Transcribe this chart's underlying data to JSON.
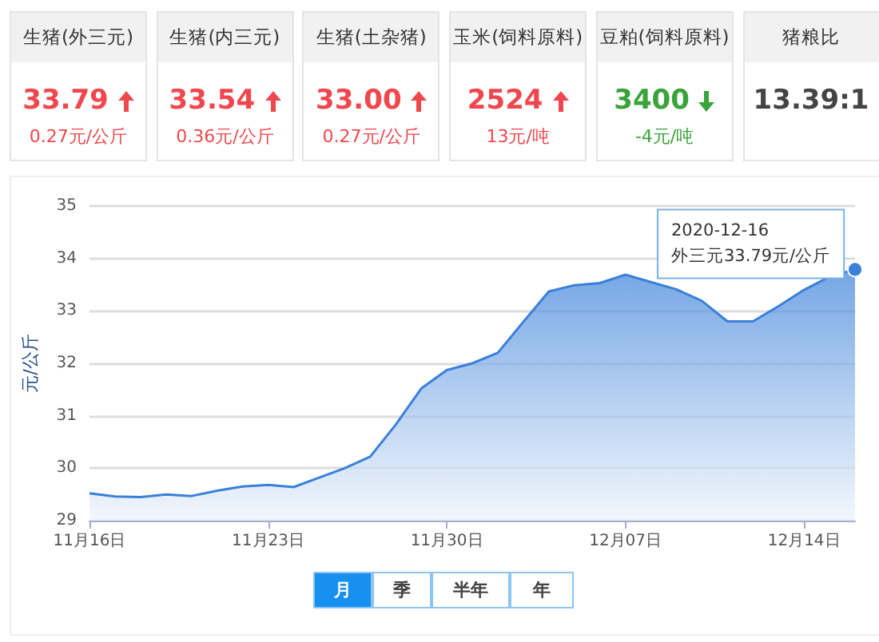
{
  "chart_data": [
    {
      "type": "other",
      "categories": [
        "生猪(外三元)",
        "生猪(内三元)",
        "生猪(土杂猪)",
        "玉米(饲料原料)",
        "豆粕(饲料原料)",
        "猪粮比"
      ],
      "value_labels": [
        "33.79",
        "33.54",
        "33.00",
        "2524",
        "3400",
        "13.39:1"
      ],
      "annotations": [
        "0.27元/公斤",
        "0.36元/公斤",
        "0.27元/公斤",
        "13元/吨",
        "-4元/吨"
      ]
    },
    {
      "type": "area",
      "ylabel": "元/公斤",
      "color": "#3a80d9",
      "grid": "y",
      "marker": "none",
      "x": [
        "2020-11-16",
        "2020-11-17",
        "2020-11-18",
        "2020-11-19",
        "2020-11-20",
        "2020-11-21",
        "2020-11-22",
        "2020-11-23",
        "2020-11-24",
        "2020-11-25",
        "2020-11-26",
        "2020-11-27",
        "2020-11-28",
        "2020-11-29",
        "2020-11-30",
        "2020-12-01",
        "2020-12-02",
        "2020-12-03",
        "2020-12-04",
        "2020-12-05",
        "2020-12-06",
        "2020-12-07",
        "2020-12-08",
        "2020-12-09",
        "2020-12-10",
        "2020-12-11",
        "2020-12-12",
        "2020-12-13",
        "2020-12-14",
        "2020-12-15",
        "2020-12-16"
      ],
      "values": [
        29.52,
        29.46,
        29.45,
        29.5,
        29.47,
        29.57,
        29.65,
        29.68,
        29.64,
        29.82,
        30.0,
        30.22,
        30.83,
        31.52,
        31.87,
        32.0,
        32.2,
        32.79,
        33.37,
        33.49,
        33.53,
        33.69,
        33.55,
        33.41,
        33.19,
        32.8,
        32.8,
        33.09,
        33.4,
        33.65,
        33.79
      ],
      "xlim": [
        "2020-11-16",
        "2020-12-16"
      ],
      "xticks": [
        {
          "value": "2020-11-16",
          "label": "11月16日"
        },
        {
          "value": "2020-11-23",
          "label": "11月23日"
        },
        {
          "value": "2020-11-30",
          "label": "11月30日"
        },
        {
          "value": "2020-12-07",
          "label": "12月07日"
        },
        {
          "value": "2020-12-14",
          "label": "12月14日"
        }
      ],
      "ylim": [
        29,
        35
      ],
      "yticks": [
        29,
        30,
        31,
        32,
        33,
        34,
        35
      ],
      "annotations": [
        {
          "text": "2020-12-16\n外三元33.79元/公斤",
          "x": "2020-12-16",
          "y": 33.79
        },
        "月",
        "季",
        "半年",
        "年"
      ]
    }
  ]
}
